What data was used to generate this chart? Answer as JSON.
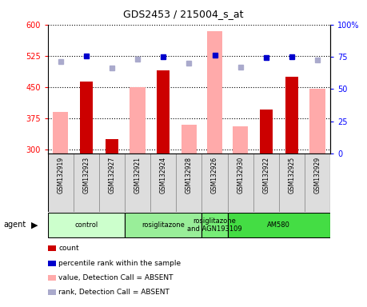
{
  "title": "GDS2453 / 215004_s_at",
  "samples": [
    "GSM132919",
    "GSM132923",
    "GSM132927",
    "GSM132921",
    "GSM132924",
    "GSM132928",
    "GSM132926",
    "GSM132930",
    "GSM132922",
    "GSM132925",
    "GSM132929"
  ],
  "counts": [
    null,
    463,
    325,
    null,
    490,
    null,
    null,
    null,
    395,
    475,
    null
  ],
  "pink_values": [
    390,
    null,
    null,
    450,
    null,
    360,
    585,
    355,
    null,
    null,
    445
  ],
  "blue_squares": [
    null,
    524,
    null,
    null,
    523,
    null,
    527,
    null,
    520,
    523,
    null
  ],
  "lavender_squares": [
    512,
    null,
    496,
    517,
    null,
    508,
    null,
    497,
    null,
    null,
    514
  ],
  "ylim": [
    290,
    600
  ],
  "y_left_ticks": [
    300,
    375,
    450,
    525,
    600
  ],
  "y_right_ticks": [
    0,
    25,
    50,
    75,
    100
  ],
  "bar_color_red": "#cc0000",
  "bar_color_pink": "#ffaaaa",
  "dot_color_blue": "#0000cc",
  "dot_color_lavender": "#aaaacc",
  "agent_groups": [
    {
      "label": "control",
      "start": 0,
      "end": 2,
      "color": "#ccffcc"
    },
    {
      "label": "rosiglitazone",
      "start": 3,
      "end": 5,
      "color": "#99ee99"
    },
    {
      "label": "rosiglitazone\nand AGN193109",
      "start": 6,
      "end": 6,
      "color": "#77ee77"
    },
    {
      "label": "AM580",
      "start": 7,
      "end": 10,
      "color": "#44dd44"
    }
  ],
  "legend_items": [
    {
      "label": "count",
      "color": "#cc0000"
    },
    {
      "label": "percentile rank within the sample",
      "color": "#0000cc"
    },
    {
      "label": "value, Detection Call = ABSENT",
      "color": "#ffaaaa"
    },
    {
      "label": "rank, Detection Call = ABSENT",
      "color": "#aaaacc"
    }
  ]
}
